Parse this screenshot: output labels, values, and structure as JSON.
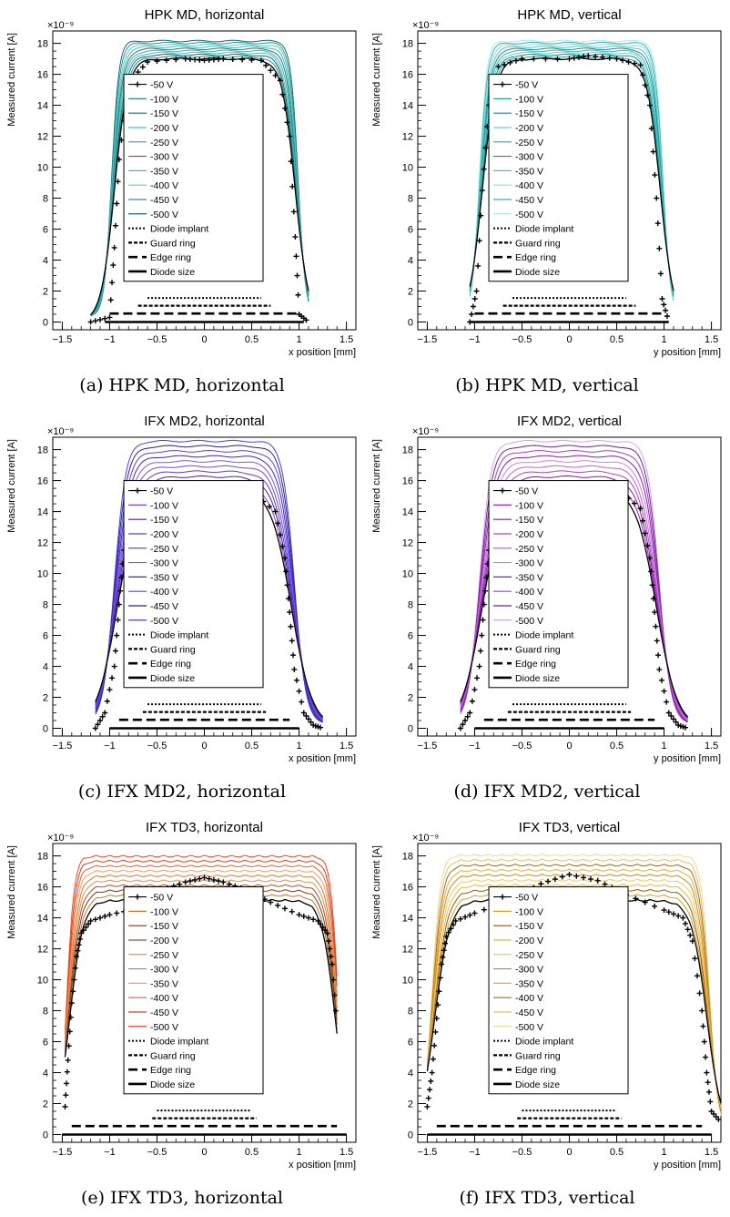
{
  "figure": {
    "captions": [
      "(a) HPK MD, horizontal",
      "(b) HPK MD, vertical",
      "(c) IFX MD2, horizontal",
      "(d) IFX MD2, vertical",
      "(e) IFX TD3, horizontal",
      "(f) IFX TD3, vertical"
    ]
  },
  "chart_data": [
    {
      "type": "line",
      "title": "HPK MD, horizontal",
      "xlabel": "x position [mm]",
      "ylabel": "Measured current [A]",
      "y_exponent": "×10⁻⁹",
      "xlim": [
        -1.6,
        1.6
      ],
      "ylim": [
        -0.5,
        18.8
      ],
      "xticks": [
        -1.5,
        -1,
        -0.5,
        0,
        0.5,
        1,
        1.5
      ],
      "xtick_labels": [
        "−1.5",
        "−1",
        "−0.5",
        "0",
        "0.5",
        "1",
        "1.5"
      ],
      "yticks": [
        0,
        2,
        4,
        6,
        8,
        10,
        12,
        14,
        16,
        18
      ],
      "legend": {
        "entries": [
          "-50 V",
          "-100 V",
          "-150 V",
          "-200 V",
          "-250 V",
          "-300 V",
          "-350 V",
          "-400 V",
          "-450 V",
          "-500 V",
          "Diode implant",
          "Guard ring",
          "Edge ring",
          "Diode size"
        ],
        "placement": "center"
      },
      "colors": [
        "#000000",
        "#2a8a8a",
        "#136a72",
        "#35c9c9",
        "#5aa7a0",
        "#1e7a7a",
        "#3dbdbd",
        "#48d4d4",
        "#3a8f95",
        "#17686b"
      ],
      "profile": {
        "x_start": -1.2,
        "x_end": 1.1,
        "edge_left": -0.95,
        "edge_right": 0.96,
        "width": 0.07,
        "tail": 0.35
      },
      "plateau_50": 17.0,
      "plateau_500": 17.8,
      "ring_lines": [
        {
          "name": "Diode implant",
          "x0": -0.6,
          "x1": 0.6,
          "y": 1.55
        },
        {
          "name": "Guard ring",
          "x0": -0.7,
          "x1": 0.7,
          "y": 1.05
        },
        {
          "name": "Edge ring",
          "x0": -1.0,
          "x1": 1.0,
          "y": 0.55
        },
        {
          "name": "Diode size",
          "x0": -1.05,
          "x1": 1.05,
          "y": 0.0
        }
      ],
      "series": [
        {
          "name": "-50 V",
          "x": [
            -1.2,
            -1.0,
            -0.95,
            -0.9,
            -0.8,
            -0.6,
            -0.2,
            0.0,
            0.2,
            0.6,
            0.8,
            0.9,
            0.96,
            1.0,
            1.1
          ],
          "y": [
            0.0,
            0.3,
            4.8,
            10.5,
            15.5,
            16.8,
            17.0,
            16.9,
            17.0,
            16.9,
            15.6,
            12.0,
            5.5,
            0.5,
            0.0
          ]
        },
        {
          "name": "-500 V",
          "x": [
            -1.2,
            -1.0,
            -0.95,
            -0.9,
            -0.8,
            -0.6,
            0.0,
            0.6,
            0.8,
            0.9,
            0.96,
            1.0,
            1.1
          ],
          "y": [
            0.2,
            0.6,
            10.0,
            16.8,
            17.6,
            17.8,
            17.8,
            17.8,
            17.6,
            16.5,
            9.0,
            0.8,
            0.0
          ]
        }
      ]
    },
    {
      "type": "line",
      "title": "HPK MD, vertical",
      "xlabel": "y position [mm]",
      "ylabel": "Measured current [A]",
      "y_exponent": "×10⁻⁹",
      "xlim": [
        -1.6,
        1.6
      ],
      "ylim": [
        -0.5,
        18.8
      ],
      "xticks": [
        -1.5,
        -1,
        -0.5,
        0,
        0.5,
        1,
        1.5
      ],
      "xtick_labels": [
        "−1.5",
        "−1",
        "−0.5",
        "0",
        "0.5",
        "1",
        "1.5"
      ],
      "yticks": [
        0,
        2,
        4,
        6,
        8,
        10,
        12,
        14,
        16,
        18
      ],
      "legend": {
        "entries": [
          "-50 V",
          "-100 V",
          "-150 V",
          "-200 V",
          "-250 V",
          "-300 V",
          "-350 V",
          "-400 V",
          "-450 V",
          "-500 V",
          "Diode implant",
          "Guard ring",
          "Edge ring",
          "Diode size"
        ],
        "placement": "center"
      },
      "colors": [
        "#000000",
        "#25a5a5",
        "#168a8f",
        "#5ad8d8",
        "#37b3b3",
        "#1e8c8c",
        "#47c8c8",
        "#7fe2e2",
        "#4aa6a6",
        "#9eeeee"
      ],
      "profile": {
        "x_start": -1.05,
        "x_end": 1.1,
        "edge_left": -0.92,
        "edge_right": 0.96,
        "width": 0.07,
        "tail": 0.35
      },
      "plateau_50": 17.0,
      "plateau_500": 17.8,
      "ring_lines": [
        {
          "name": "Diode implant",
          "x0": -0.6,
          "x1": 0.6,
          "y": 1.55
        },
        {
          "name": "Guard ring",
          "x0": -0.7,
          "x1": 0.7,
          "y": 1.05
        },
        {
          "name": "Edge ring",
          "x0": -1.0,
          "x1": 1.0,
          "y": 0.55
        },
        {
          "name": "Diode size",
          "x0": -1.05,
          "x1": 1.05,
          "y": 0.0
        }
      ],
      "series": [
        {
          "name": "-50 V",
          "x": [
            -1.05,
            -0.98,
            -0.92,
            -0.85,
            -0.75,
            -0.5,
            0.0,
            0.2,
            0.5,
            0.75,
            0.85,
            0.92,
            0.98,
            1.05
          ],
          "y": [
            0.0,
            2.0,
            8.5,
            14.0,
            16.5,
            17.0,
            17.0,
            17.2,
            17.0,
            16.6,
            14.0,
            8.0,
            1.5,
            0.0
          ]
        },
        {
          "name": "-500 V",
          "x": [
            -1.05,
            -0.98,
            -0.92,
            -0.85,
            -0.75,
            0.0,
            0.75,
            0.85,
            0.92,
            0.98,
            1.05
          ],
          "y": [
            0.0,
            4.0,
            14.0,
            17.5,
            17.8,
            17.8,
            17.8,
            17.5,
            13.5,
            3.0,
            0.0
          ]
        }
      ]
    },
    {
      "type": "line",
      "title": "IFX MD2, horizontal",
      "xlabel": "x position [mm]",
      "ylabel": "Measured current [A]",
      "y_exponent": "×10⁻⁹",
      "xlim": [
        -1.6,
        1.6
      ],
      "ylim": [
        -0.5,
        18.8
      ],
      "xticks": [
        -1.5,
        -1,
        -0.5,
        0,
        0.5,
        1,
        1.5
      ],
      "xtick_labels": [
        "−1.5",
        "−1",
        "−0.5",
        "0",
        "0.5",
        "1",
        "1.5"
      ],
      "yticks": [
        0,
        2,
        4,
        6,
        8,
        10,
        12,
        14,
        16,
        18
      ],
      "legend": {
        "entries": [
          "-50 V",
          "-100 V",
          "-150 V",
          "-200 V",
          "-250 V",
          "-300 V",
          "-350 V",
          "-400 V",
          "-450 V",
          "-500 V",
          "Diode implant",
          "Guard ring",
          "Edge ring",
          "Diode size"
        ],
        "placement": "center"
      },
      "colors": [
        "#000000",
        "#8a3dd6",
        "#4a20a0",
        "#5a3ad0",
        "#6a4ae0",
        "#7a5ae6",
        "#3a28b0",
        "#5a40d8",
        "#2a1e8a",
        "#4040e6"
      ],
      "profile": {
        "x_start": -1.15,
        "x_end": 1.25,
        "edge_left": -0.92,
        "edge_right": 0.92,
        "width": 0.11,
        "tail": 0.25
      },
      "plateau_50": 15.6,
      "plateau_500": 18.3,
      "ring_lines": [
        {
          "name": "Diode implant",
          "x0": -0.6,
          "x1": 0.6,
          "y": 1.55
        },
        {
          "name": "Guard ring",
          "x0": -0.65,
          "x1": 0.65,
          "y": 1.05
        },
        {
          "name": "Edge ring",
          "x0": -0.9,
          "x1": 0.9,
          "y": 0.55
        },
        {
          "name": "Diode size",
          "x0": -1.0,
          "x1": 1.0,
          "y": 0.0
        }
      ],
      "series": [
        {
          "name": "-50 V",
          "x": [
            -1.15,
            -1.05,
            -0.95,
            -0.9,
            -0.85,
            -0.75,
            -0.5,
            0.0,
            0.5,
            0.75,
            0.85,
            0.9,
            0.95,
            1.05,
            1.15,
            1.25
          ],
          "y": [
            0.0,
            1.0,
            4.0,
            8.0,
            11.5,
            14.2,
            15.2,
            15.6,
            15.3,
            14.0,
            11.0,
            7.5,
            3.8,
            1.0,
            0.2,
            0.0
          ]
        },
        {
          "name": "-500 V",
          "x": [
            -1.15,
            -1.05,
            -0.95,
            -0.88,
            -0.8,
            -0.6,
            0.0,
            0.6,
            0.8,
            0.88,
            0.95,
            1.05,
            1.15,
            1.25
          ],
          "y": [
            1.8,
            4.5,
            9.0,
            14.5,
            17.5,
            18.2,
            18.2,
            18.3,
            18.0,
            15.0,
            9.5,
            4.5,
            2.0,
            1.0
          ]
        }
      ]
    },
    {
      "type": "line",
      "title": "IFX MD2, vertical",
      "xlabel": "y position [mm]",
      "ylabel": "Measured current [A]",
      "y_exponent": "×10⁻⁹",
      "xlim": [
        -1.6,
        1.6
      ],
      "ylim": [
        -0.5,
        18.8
      ],
      "xticks": [
        -1.5,
        -1,
        -0.5,
        0,
        0.5,
        1,
        1.5
      ],
      "xtick_labels": [
        "−1.5",
        "−1",
        "−0.5",
        "0",
        "0.5",
        "1",
        "1.5"
      ],
      "yticks": [
        0,
        2,
        4,
        6,
        8,
        10,
        12,
        14,
        16,
        18
      ],
      "legend": {
        "entries": [
          "-50 V",
          "-100 V",
          "-150 V",
          "-200 V",
          "-250 V",
          "-300 V",
          "-350 V",
          "-400 V",
          "-450 V",
          "-500 V",
          "Diode implant",
          "Guard ring",
          "Edge ring",
          "Diode size"
        ],
        "placement": "center"
      },
      "colors": [
        "#000000",
        "#a020c8",
        "#7a2090",
        "#b040d0",
        "#c060d8",
        "#d080e0",
        "#8a1aa8",
        "#9a40c8",
        "#6a2488",
        "#d6a0e8"
      ],
      "profile": {
        "x_start": -1.15,
        "x_end": 1.25,
        "edge_left": -0.92,
        "edge_right": 0.92,
        "width": 0.11,
        "tail": 0.25
      },
      "plateau_50": 15.6,
      "plateau_500": 18.3,
      "ring_lines": [
        {
          "name": "Diode implant",
          "x0": -0.6,
          "x1": 0.6,
          "y": 1.55
        },
        {
          "name": "Guard ring",
          "x0": -0.65,
          "x1": 0.65,
          "y": 1.05
        },
        {
          "name": "Edge ring",
          "x0": -0.9,
          "x1": 0.9,
          "y": 0.55
        },
        {
          "name": "Diode size",
          "x0": -1.0,
          "x1": 1.0,
          "y": 0.0
        }
      ],
      "series": [
        {
          "name": "-50 V",
          "x": [
            -1.15,
            -1.05,
            -0.95,
            -0.9,
            -0.85,
            -0.75,
            -0.5,
            0.0,
            0.5,
            0.75,
            0.85,
            0.9,
            0.95,
            1.05,
            1.15,
            1.25
          ],
          "y": [
            0.0,
            1.0,
            4.0,
            8.0,
            11.5,
            14.5,
            15.5,
            15.8,
            15.5,
            14.2,
            11.0,
            7.5,
            3.8,
            1.0,
            0.2,
            0.0
          ]
        },
        {
          "name": "-500 V",
          "x": [
            -1.15,
            -1.05,
            -0.95,
            -0.88,
            -0.8,
            -0.6,
            0.0,
            0.6,
            0.8,
            0.88,
            0.95,
            1.05,
            1.15,
            1.25
          ],
          "y": [
            1.8,
            4.5,
            9.0,
            14.5,
            17.8,
            18.4,
            18.4,
            18.4,
            18.2,
            15.0,
            9.5,
            4.5,
            2.0,
            1.0
          ]
        }
      ]
    },
    {
      "type": "line",
      "title": "IFX TD3, horizontal",
      "xlabel": "x position [mm]",
      "ylabel": "Measured current [A]",
      "y_exponent": "×10⁻⁹",
      "xlim": [
        -1.6,
        1.6
      ],
      "ylim": [
        -0.5,
        18.8
      ],
      "xticks": [
        -1.5,
        -1,
        -0.5,
        0,
        0.5,
        1,
        1.5
      ],
      "xtick_labels": [
        "−1.5",
        "−1",
        "−0.5",
        "0",
        "0.5",
        "1",
        "1.5"
      ],
      "yticks": [
        0,
        2,
        4,
        6,
        8,
        10,
        12,
        14,
        16,
        18
      ],
      "legend": {
        "entries": [
          "-50 V",
          "-100 V",
          "-150 V",
          "-200 V",
          "-250 V",
          "-300 V",
          "-350 V",
          "-400 V",
          "-450 V",
          "-500 V",
          "Diode implant",
          "Guard ring",
          "Edge ring",
          "Diode size"
        ],
        "placement": "center"
      },
      "colors": [
        "#000000",
        "#c8782a",
        "#7a3a1a",
        "#a05028",
        "#e09050",
        "#d07a30",
        "#f0a060",
        "#e86030",
        "#d04020",
        "#ff4020"
      ],
      "profile": {
        "x_start": -1.47,
        "x_end": 1.4,
        "edge_left": -1.42,
        "edge_right": 1.38,
        "width": 0.07,
        "tail": 0.05
      },
      "plateau_50": 15.2,
      "plateau_500": 18.0,
      "ring_lines": [
        {
          "name": "Diode implant",
          "x0": -0.5,
          "x1": 0.5,
          "y": 1.55
        },
        {
          "name": "Guard ring",
          "x0": -0.55,
          "x1": 0.55,
          "y": 1.05
        },
        {
          "name": "Edge ring",
          "x0": -1.4,
          "x1": 1.4,
          "y": 0.55
        },
        {
          "name": "Diode size",
          "x0": -1.5,
          "x1": 1.5,
          "y": 0.0
        }
      ],
      "series": [
        {
          "name": "-50 V",
          "x": [
            -1.47,
            -1.44,
            -1.4,
            -1.35,
            -1.3,
            -1.2,
            -1.0,
            -0.7,
            -0.45,
            -0.2,
            0.0,
            0.2,
            0.45,
            0.7,
            1.0,
            1.2,
            1.3,
            1.35,
            1.4
          ],
          "y": [
            1.8,
            4.8,
            8.5,
            11.5,
            13.0,
            13.8,
            14.2,
            14.6,
            15.8,
            16.3,
            16.6,
            16.3,
            15.8,
            15.0,
            14.2,
            13.8,
            13.0,
            11.0,
            7.0
          ]
        },
        {
          "name": "-500 V",
          "x": [
            -1.47,
            -1.44,
            -1.4,
            -1.35,
            -1.3,
            -1.2,
            -1.0,
            0.0,
            1.0,
            1.2,
            1.3,
            1.35,
            1.4
          ],
          "y": [
            2.2,
            8.0,
            14.5,
            17.0,
            17.8,
            18.0,
            18.0,
            17.9,
            18.0,
            17.8,
            16.5,
            13.0,
            7.5
          ]
        }
      ]
    },
    {
      "type": "line",
      "title": "IFX TD3, vertical",
      "xlabel": "y position [mm]",
      "ylabel": "Measured current [A]",
      "y_exponent": "×10⁻⁹",
      "xlim": [
        -1.6,
        1.6
      ],
      "ylim": [
        -0.5,
        18.8
      ],
      "xticks": [
        -1.5,
        -1,
        -0.5,
        0,
        0.5,
        1,
        1.5
      ],
      "xtick_labels": [
        "−1.5",
        "−1",
        "−0.5",
        "0",
        "0.5",
        "1",
        "1.5"
      ],
      "yticks": [
        0,
        2,
        4,
        6,
        8,
        10,
        12,
        14,
        16,
        18
      ],
      "legend": {
        "entries": [
          "-50 V",
          "-100 V",
          "-150 V",
          "-200 V",
          "-250 V",
          "-300 V",
          "-350 V",
          "-400 V",
          "-450 V",
          "-500 V",
          "Diode implant",
          "Guard ring",
          "Edge ring",
          "Diode size"
        ],
        "placement": "center"
      },
      "colors": [
        "#000000",
        "#d8a020",
        "#8a5a18",
        "#e8b840",
        "#f0c860",
        "#c88a18",
        "#f0a830",
        "#9a6a28",
        "#e0c070",
        "#f8d890"
      ],
      "profile": {
        "x_start": -1.5,
        "x_end": 1.6,
        "edge_left": -1.42,
        "edge_right": 1.45,
        "width": 0.08,
        "tail": 0.12
      },
      "plateau_50": 15.2,
      "plateau_500": 18.0,
      "ring_lines": [
        {
          "name": "Diode implant",
          "x0": -0.5,
          "x1": 0.5,
          "y": 1.55
        },
        {
          "name": "Guard ring",
          "x0": -0.55,
          "x1": 0.55,
          "y": 1.05
        },
        {
          "name": "Edge ring",
          "x0": -1.4,
          "x1": 1.4,
          "y": 0.55
        },
        {
          "name": "Diode size",
          "x0": -1.5,
          "x1": 1.5,
          "y": 0.0
        }
      ],
      "series": [
        {
          "name": "-50 V",
          "x": [
            -1.5,
            -1.45,
            -1.4,
            -1.35,
            -1.3,
            -1.2,
            -1.0,
            -0.6,
            -0.3,
            0.0,
            0.3,
            0.6,
            1.0,
            1.2,
            1.3,
            1.4,
            1.45,
            1.5,
            1.6
          ],
          "y": [
            1.8,
            4.0,
            7.5,
            11.0,
            12.8,
            13.8,
            14.3,
            15.2,
            16.2,
            16.8,
            16.4,
            15.5,
            14.5,
            14.0,
            12.5,
            8.0,
            4.0,
            1.5,
            0.8
          ]
        },
        {
          "name": "-500 V",
          "x": [
            -1.5,
            -1.45,
            -1.4,
            -1.35,
            -1.3,
            -1.2,
            0.0,
            1.2,
            1.3,
            1.4,
            1.45,
            1.5,
            1.6
          ],
          "y": [
            2.0,
            6.0,
            12.0,
            16.0,
            17.5,
            18.0,
            18.0,
            17.9,
            17.0,
            12.0,
            5.0,
            2.0,
            1.0
          ]
        }
      ]
    }
  ]
}
